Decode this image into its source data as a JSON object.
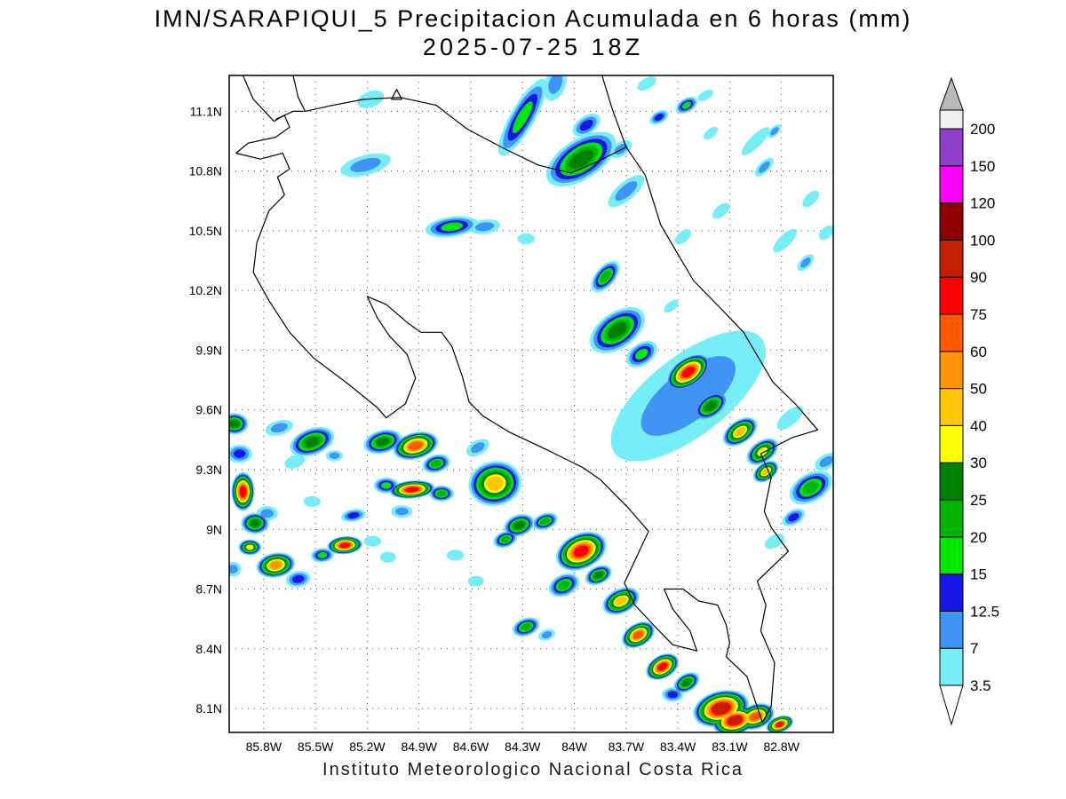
{
  "header": {
    "title": "IMN/SARAPIQUI_5 Precipitacion Acumulada en 6 horas (mm)",
    "subtitle": "2025-07-25 18Z"
  },
  "footer": {
    "text": "Instituto Meteorologico Nacional Costa Rica"
  },
  "chart_data": {
    "type": "heatmap",
    "subtype": "precipitation-contour-map",
    "units": "mm",
    "region": "Costa Rica",
    "lon_min": -86.0,
    "lon_max": -82.5,
    "lat_min": 7.98,
    "lat_max": 11.28,
    "lon_ticks": [
      {
        "value": -85.8,
        "label": "85.8W"
      },
      {
        "value": -85.5,
        "label": "85.5W"
      },
      {
        "value": -85.2,
        "label": "85.2W"
      },
      {
        "value": -84.9,
        "label": "84.9W"
      },
      {
        "value": -84.6,
        "label": "84.6W"
      },
      {
        "value": -84.3,
        "label": "84.3W"
      },
      {
        "value": -84.0,
        "label": "84W"
      },
      {
        "value": -83.7,
        "label": "83.7W"
      },
      {
        "value": -83.4,
        "label": "83.4W"
      },
      {
        "value": -83.1,
        "label": "83.1W"
      },
      {
        "value": -82.8,
        "label": "82.8W"
      }
    ],
    "lat_ticks": [
      {
        "value": 11.1,
        "label": "11.1N"
      },
      {
        "value": 10.8,
        "label": "10.8N"
      },
      {
        "value": 10.5,
        "label": "10.5N"
      },
      {
        "value": 10.2,
        "label": "10.2N"
      },
      {
        "value": 9.9,
        "label": "9.9N"
      },
      {
        "value": 9.6,
        "label": "9.6N"
      },
      {
        "value": 9.3,
        "label": "9.3N"
      },
      {
        "value": 9.0,
        "label": "9N"
      },
      {
        "value": 8.7,
        "label": "8.7N"
      },
      {
        "value": 8.4,
        "label": "8.4N"
      },
      {
        "value": 8.1,
        "label": "8.1N"
      }
    ],
    "colorbar": {
      "levels": [
        "3.5",
        "7",
        "12.5",
        "15",
        "20",
        "25",
        "30",
        "40",
        "50",
        "60",
        "75",
        "90",
        "100",
        "120",
        "150",
        "200"
      ],
      "level_values": [
        3.5,
        7,
        12.5,
        15,
        20,
        25,
        30,
        40,
        50,
        60,
        75,
        90,
        100,
        120,
        150,
        200
      ],
      "colors": [
        "#76eef8",
        "#3f94f5",
        "#1616e8",
        "#00e800",
        "#00b400",
        "#008000",
        "#ffff00",
        "#ffc800",
        "#ff9600",
        "#ff5a00",
        "#ff0000",
        "#c41f00",
        "#8f0000",
        "#ff00ff",
        "#9040c8",
        "#f0f0f0"
      ],
      "under_color": "#ffffff",
      "over_arrow_color": "#b9b9b9"
    },
    "coastlines": [
      [
        [
          -85.92,
          11.28
        ],
        [
          -85.86,
          11.16
        ],
        [
          -85.74,
          11.05
        ],
        [
          -85.68,
          11.08
        ],
        [
          -85.65,
          11.02
        ],
        [
          -85.73,
          10.97
        ],
        [
          -85.89,
          10.94
        ],
        [
          -85.96,
          10.89
        ],
        [
          -85.82,
          10.86
        ],
        [
          -85.69,
          10.89
        ],
        [
          -85.65,
          10.81
        ],
        [
          -85.72,
          10.77
        ],
        [
          -85.68,
          10.68
        ],
        [
          -85.77,
          10.6
        ],
        [
          -85.84,
          10.44
        ],
        [
          -85.86,
          10.29
        ],
        [
          -85.77,
          10.15
        ],
        [
          -85.65,
          9.99
        ],
        [
          -85.51,
          9.86
        ],
        [
          -85.31,
          9.73
        ],
        [
          -85.14,
          9.61
        ],
        [
          -85.09,
          9.56
        ],
        [
          -84.98,
          9.63
        ],
        [
          -84.92,
          9.76
        ],
        [
          -84.97,
          9.88
        ],
        [
          -85.07,
          9.97
        ],
        [
          -85.14,
          10.06
        ],
        [
          -85.2,
          10.17
        ],
        [
          -85.09,
          10.13
        ],
        [
          -84.97,
          10.04
        ],
        [
          -84.89,
          9.99
        ],
        [
          -84.77,
          9.99
        ],
        [
          -84.71,
          9.92
        ],
        [
          -84.65,
          9.77
        ],
        [
          -84.61,
          9.64
        ],
        [
          -84.53,
          9.57
        ],
        [
          -84.38,
          9.49
        ],
        [
          -84.16,
          9.4
        ],
        [
          -83.95,
          9.31
        ],
        [
          -83.85,
          9.25
        ],
        [
          -83.69,
          9.11
        ],
        [
          -83.57,
          8.99
        ],
        [
          -83.63,
          8.88
        ],
        [
          -83.71,
          8.73
        ],
        [
          -83.65,
          8.62
        ],
        [
          -83.52,
          8.5
        ],
        [
          -83.43,
          8.42
        ],
        [
          -83.29,
          8.39
        ],
        [
          -83.33,
          8.49
        ],
        [
          -83.43,
          8.6
        ],
        [
          -83.48,
          8.7
        ],
        [
          -83.37,
          8.7
        ],
        [
          -83.28,
          8.64
        ],
        [
          -83.17,
          8.62
        ],
        [
          -83.12,
          8.52
        ],
        [
          -83.1,
          8.43
        ],
        [
          -83.12,
          8.36
        ],
        [
          -83.0,
          8.26
        ],
        [
          -82.91,
          8.03
        ],
        [
          -82.86,
          8.11
        ],
        [
          -82.84,
          8.33
        ],
        [
          -82.92,
          8.49
        ],
        [
          -82.89,
          8.62
        ],
        [
          -82.94,
          8.74
        ],
        [
          -82.76,
          8.89
        ],
        [
          -82.86,
          9.01
        ],
        [
          -82.9,
          9.09
        ],
        [
          -82.86,
          9.26
        ],
        [
          -82.92,
          9.38
        ],
        [
          -82.74,
          9.46
        ],
        [
          -82.59,
          9.5
        ],
        [
          -82.72,
          9.63
        ],
        [
          -82.85,
          9.74
        ],
        [
          -83.02,
          9.99
        ],
        [
          -83.13,
          10.09
        ],
        [
          -83.31,
          10.25
        ],
        [
          -83.5,
          10.53
        ],
        [
          -83.59,
          10.78
        ],
        [
          -83.7,
          10.92
        ],
        [
          -83.78,
          11.11
        ],
        [
          -83.84,
          11.28
        ]
      ],
      [
        [
          -85.73,
          11.06
        ],
        [
          -85.63,
          11.1
        ],
        [
          -85.57,
          11.1
        ]
      ],
      [
        [
          -85.63,
          11.28
        ],
        [
          -85.6,
          11.17
        ],
        [
          -85.56,
          11.1
        ],
        [
          -85.4,
          11.13
        ],
        [
          -85.22,
          11.16
        ],
        [
          -85.01,
          11.17
        ],
        [
          -84.8,
          11.13
        ],
        [
          -84.62,
          11.01
        ],
        [
          -84.4,
          10.91
        ],
        [
          -84.21,
          10.83
        ],
        [
          -84.02,
          10.79
        ],
        [
          -83.86,
          10.85
        ],
        [
          -83.7,
          10.92
        ]
      ],
      [
        [
          -85.06,
          11.16
        ],
        [
          -85.0,
          11.16
        ],
        [
          -85.03,
          11.21
        ],
        [
          -85.06,
          11.16
        ]
      ]
    ],
    "cells_format": [
      "lon",
      "lat",
      "radius_lon_deg",
      "radius_lat_deg",
      "rotation_deg",
      "peak_mm"
    ],
    "cells": [
      [
        -85.18,
        11.16,
        0.08,
        0.04,
        -20,
        3.5
      ],
      [
        -85.21,
        10.83,
        0.15,
        0.05,
        -15,
        7
      ],
      [
        -84.3,
        11.07,
        0.07,
        0.22,
        30,
        15
      ],
      [
        -84.11,
        11.24,
        0.06,
        0.09,
        20,
        7
      ],
      [
        -83.96,
        10.86,
        0.23,
        0.1,
        -33,
        25
      ],
      [
        -83.93,
        11.03,
        0.09,
        0.045,
        -35,
        12.5
      ],
      [
        -83.73,
        10.91,
        0.07,
        0.035,
        -35,
        7
      ],
      [
        -83.7,
        10.7,
        0.13,
        0.045,
        -40,
        7
      ],
      [
        -83.58,
        11.24,
        0.06,
        0.027,
        -30,
        3.5
      ],
      [
        -83.51,
        11.07,
        0.06,
        0.03,
        -30,
        12.5
      ],
      [
        -83.35,
        11.13,
        0.07,
        0.035,
        -30,
        15
      ],
      [
        -83.24,
        11.18,
        0.05,
        0.022,
        -30,
        3.5
      ],
      [
        -83.21,
        10.99,
        0.05,
        0.022,
        -40,
        3.5
      ],
      [
        -82.95,
        10.95,
        0.11,
        0.03,
        -45,
        3.5
      ],
      [
        -82.84,
        11.0,
        0.05,
        0.022,
        -45,
        7
      ],
      [
        -82.9,
        10.82,
        0.07,
        0.027,
        -45,
        7
      ],
      [
        -82.63,
        10.66,
        0.06,
        0.027,
        -45,
        3.5
      ],
      [
        -82.54,
        10.49,
        0.05,
        0.027,
        -45,
        3.5
      ],
      [
        -84.71,
        10.52,
        0.155,
        0.05,
        -8,
        15
      ],
      [
        -84.52,
        10.52,
        0.09,
        0.036,
        -8,
        7
      ],
      [
        -84.28,
        10.46,
        0.05,
        0.027,
        0,
        3.5
      ],
      [
        -83.82,
        10.27,
        0.057,
        0.094,
        40,
        20
      ],
      [
        -83.37,
        10.47,
        0.055,
        0.027,
        -40,
        3.5
      ],
      [
        -83.15,
        10.6,
        0.06,
        0.027,
        -40,
        3.5
      ],
      [
        -82.78,
        10.45,
        0.09,
        0.03,
        -45,
        3.5
      ],
      [
        -82.66,
        10.34,
        0.06,
        0.027,
        -45,
        7
      ],
      [
        -83.44,
        10.12,
        0.05,
        0.022,
        -40,
        3.5
      ],
      [
        -83.75,
        10.0,
        0.18,
        0.09,
        -35,
        25
      ],
      [
        -83.61,
        9.88,
        0.1,
        0.054,
        -35,
        15
      ],
      [
        -83.34,
        9.67,
        0.54,
        0.2,
        -38,
        7
      ],
      [
        -83.34,
        9.79,
        0.144,
        0.071,
        -35,
        75
      ],
      [
        -83.21,
        9.62,
        0.113,
        0.058,
        -35,
        25
      ],
      [
        -83.04,
        9.49,
        0.113,
        0.058,
        -35,
        40
      ],
      [
        -82.91,
        9.39,
        0.103,
        0.054,
        -35,
        30
      ],
      [
        -82.89,
        9.29,
        0.082,
        0.045,
        -35,
        40
      ],
      [
        -82.63,
        9.21,
        0.134,
        0.071,
        -30,
        20
      ],
      [
        -82.54,
        9.34,
        0.072,
        0.036,
        -30,
        7
      ],
      [
        -82.73,
        9.06,
        0.072,
        0.036,
        -30,
        12.5
      ],
      [
        -82.84,
        8.94,
        0.062,
        0.031,
        -30,
        3.5
      ],
      [
        -82.75,
        9.56,
        0.093,
        0.036,
        -40,
        3.5
      ],
      [
        -85.97,
        9.53,
        0.082,
        0.054,
        0,
        25
      ],
      [
        -85.94,
        9.38,
        0.072,
        0.045,
        0,
        12.5
      ],
      [
        -85.92,
        9.19,
        0.067,
        0.098,
        0,
        75
      ],
      [
        -85.85,
        9.03,
        0.082,
        0.054,
        0,
        25
      ],
      [
        -85.88,
        8.91,
        0.067,
        0.04,
        0,
        30
      ],
      [
        -85.78,
        9.08,
        0.062,
        0.036,
        0,
        7
      ],
      [
        -85.98,
        8.8,
        0.05,
        0.036,
        0,
        7
      ],
      [
        -85.71,
        9.51,
        0.082,
        0.036,
        -15,
        7
      ],
      [
        -85.52,
        9.44,
        0.134,
        0.067,
        -20,
        25
      ],
      [
        -85.62,
        9.34,
        0.062,
        0.031,
        -20,
        3.5
      ],
      [
        -85.39,
        9.37,
        0.05,
        0.027,
        0,
        7
      ],
      [
        -85.11,
        9.44,
        0.113,
        0.058,
        -15,
        25
      ],
      [
        -84.92,
        9.42,
        0.134,
        0.067,
        -15,
        60
      ],
      [
        -84.8,
        9.33,
        0.082,
        0.045,
        -15,
        20
      ],
      [
        -84.94,
        9.2,
        0.134,
        0.045,
        -5,
        75
      ],
      [
        -84.77,
        9.18,
        0.072,
        0.04,
        0,
        20
      ],
      [
        -85.09,
        9.22,
        0.072,
        0.04,
        0,
        15
      ],
      [
        -85.0,
        9.09,
        0.062,
        0.031,
        0,
        7
      ],
      [
        -85.17,
        8.94,
        0.05,
        0.027,
        0,
        3.5
      ],
      [
        -85.08,
        8.86,
        0.046,
        0.027,
        0,
        3.5
      ],
      [
        -84.46,
        9.23,
        0.154,
        0.112,
        -10,
        40
      ],
      [
        -84.56,
        9.41,
        0.072,
        0.036,
        -30,
        7
      ],
      [
        -84.32,
        9.02,
        0.093,
        0.054,
        -20,
        25
      ],
      [
        -84.4,
        8.95,
        0.072,
        0.04,
        -20,
        20
      ],
      [
        -84.17,
        9.04,
        0.077,
        0.04,
        -20,
        20
      ],
      [
        -83.96,
        8.89,
        0.154,
        0.089,
        -25,
        75
      ],
      [
        -84.06,
        8.72,
        0.093,
        0.054,
        -25,
        20
      ],
      [
        -83.86,
        8.77,
        0.082,
        0.045,
        -25,
        25
      ],
      [
        -83.73,
        8.64,
        0.113,
        0.062,
        -25,
        40
      ],
      [
        -83.63,
        8.47,
        0.103,
        0.058,
        -30,
        60
      ],
      [
        -83.49,
        8.31,
        0.103,
        0.058,
        -30,
        75
      ],
      [
        -83.35,
        8.23,
        0.082,
        0.045,
        -30,
        25
      ],
      [
        -83.43,
        8.17,
        0.062,
        0.036,
        0,
        12.5
      ],
      [
        -83.15,
        8.1,
        0.165,
        0.089,
        -15,
        90
      ],
      [
        -83.07,
        8.04,
        0.134,
        0.071,
        -15,
        90
      ],
      [
        -82.95,
        8.06,
        0.113,
        0.062,
        -20,
        60
      ],
      [
        -82.81,
        8.02,
        0.082,
        0.04,
        -20,
        75
      ],
      [
        -84.28,
        8.51,
        0.082,
        0.045,
        -20,
        20
      ],
      [
        -84.16,
        8.47,
        0.05,
        0.027,
        -20,
        7
      ],
      [
        -84.69,
        8.87,
        0.05,
        0.027,
        0,
        3.5
      ],
      [
        -84.57,
        8.74,
        0.046,
        0.027,
        0,
        3.5
      ],
      [
        -85.73,
        8.82,
        0.113,
        0.062,
        -10,
        50
      ],
      [
        -85.6,
        8.75,
        0.072,
        0.04,
        -10,
        12.5
      ],
      [
        -85.33,
        8.92,
        0.103,
        0.045,
        -5,
        75
      ],
      [
        -85.46,
        8.87,
        0.067,
        0.036,
        -5,
        15
      ],
      [
        -85.52,
        9.14,
        0.05,
        0.027,
        0,
        3.5
      ],
      [
        -85.28,
        9.07,
        0.072,
        0.031,
        -10,
        12.5
      ]
    ]
  }
}
